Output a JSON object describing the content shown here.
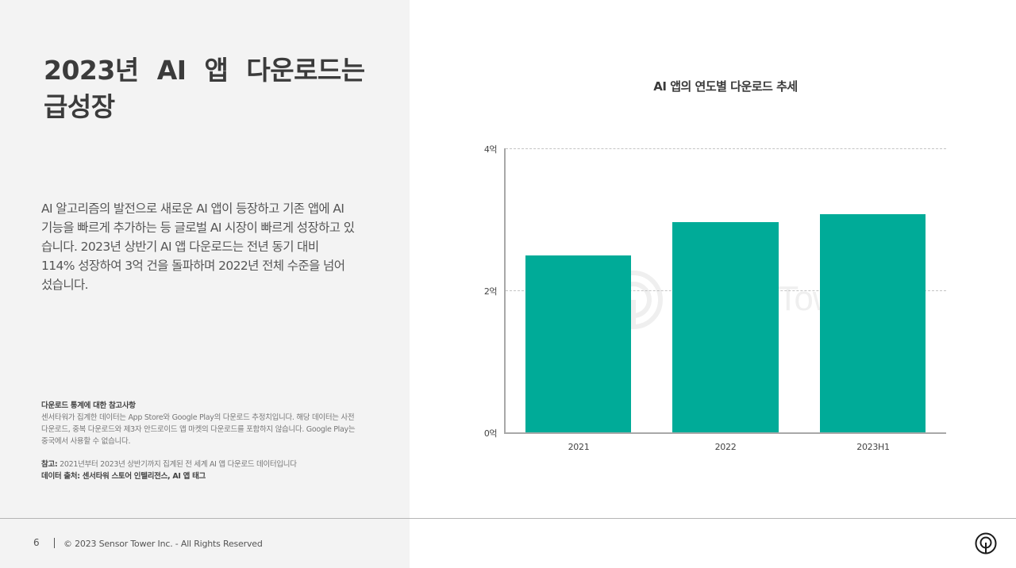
{
  "slide": {
    "title": "2023년 AI 앱 다운로드는 급성장",
    "body": "AI 알고리즘의 발전으로 새로운 AI 앱이 등장하고 기존 앱에 AI 기능을 빠르게 추가하는 등 글로벌 AI 시장이 빠르게 성장하고 있습니다. 2023년 상반기 AI 앱 다운로드는 전년 동기 대비 114% 성장하여 3억 건을 돌파하며 2022년 전체 수준을 넘어섰습니다.",
    "notes": {
      "heading": "다운로드 통계에 대한 참고사항",
      "text": "센서타워가 집계한 데이터는 App Store와 Google Play의 다운로드 추정치입니다. 해당 데이터는 사전 다운로드, 중복 다운로드와 제3자 안드로이드 앱 마켓의 다운로드를 포함하지 않습니다. Google Play는 중국에서 사용할 수 없습니다.",
      "reference_label": "참고:",
      "reference_text": " 2021년부터 2023년 상반기까지 집계된 전 세계 AI 앱 다운로드 데이터입니다",
      "source": "데이터 출처: 센서타워 스토어 인텔리전스, AI 앱 태그"
    }
  },
  "footer": {
    "page_number": "6",
    "copyright": "© 2023 Sensor Tower Inc. - All Rights Reserved",
    "logo_icon": "sensor-tower-logo-icon"
  },
  "watermark": {
    "text": "SensorTower"
  },
  "colors": {
    "bar": "#00ab98",
    "left_panel_bg": "#f3f3f3",
    "axis": "#a8a8a8",
    "gridline": "#c4c4c4"
  },
  "chart_data": {
    "type": "bar",
    "title": "AI 앱의 연도별 다운로드 추세",
    "categories": [
      "2021",
      "2022",
      "2023H1"
    ],
    "values": [
      2.49,
      2.96,
      3.07
    ],
    "unit": "억",
    "xlabel": "",
    "ylabel": "",
    "ylim": [
      0,
      4
    ],
    "y_ticks": [
      {
        "value": 0,
        "label": "0억"
      },
      {
        "value": 2,
        "label": "2억"
      },
      {
        "value": 4,
        "label": "4억"
      }
    ],
    "grid": true,
    "legend": null
  }
}
